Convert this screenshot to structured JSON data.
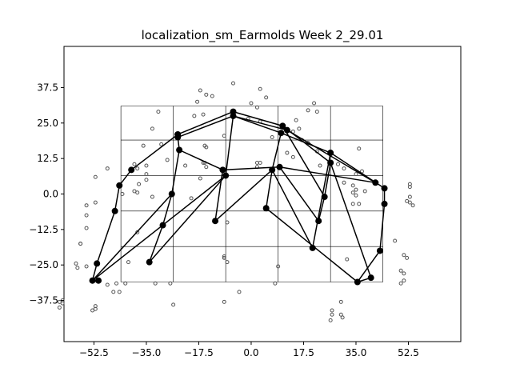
{
  "chart_data": {
    "type": "scatter",
    "title": "localization_sm_Earmolds Week 2_29.01",
    "xlabel": "",
    "ylabel": "",
    "xlim": [
      -62.5,
      70
    ],
    "ylim": [
      -52,
      52
    ],
    "grid": false,
    "x_ticks": [
      -52.5,
      -35.0,
      -17.5,
      0.0,
      17.5,
      35.0,
      52.5
    ],
    "x_tick_labels": [
      "−52.5",
      "−35.0",
      "−17.5",
      "0.0",
      "17.5",
      "35.0",
      "52.5"
    ],
    "y_ticks": [
      37.5,
      25.0,
      12.5,
      0.0,
      -12.5,
      -25.0,
      -37.5
    ],
    "y_tick_labels": [
      "37.5",
      "25.0",
      "12.5",
      "0.0",
      "−12.5",
      "−25.0",
      "−37.5"
    ],
    "colors": {
      "marker": "#000000",
      "scatter_edge": "#555555",
      "rect": "#000000"
    },
    "reference_grid": {
      "x": [
        -43.5,
        -26,
        -8.5,
        9,
        26.5,
        44
      ],
      "y": [
        -31,
        -18.5,
        -6,
        6.5,
        19,
        31
      ]
    },
    "main_points": [
      {
        "id": "a1",
        "x": -6.0,
        "y": 29.0
      },
      {
        "id": "a2",
        "x": -6.0,
        "y": 27.5
      },
      {
        "id": "a3",
        "x": 10.5,
        "y": 24.0
      },
      {
        "id": "a4",
        "x": 12.0,
        "y": 22.5
      },
      {
        "id": "a5",
        "x": -24.5,
        "y": 21.0
      },
      {
        "id": "a6",
        "x": -24.5,
        "y": 20.0
      },
      {
        "id": "a7",
        "x": 26.5,
        "y": 14.5
      },
      {
        "id": "a8",
        "x": 26.5,
        "y": 11.0
      },
      {
        "id": "a9",
        "x": -40.0,
        "y": 8.5
      },
      {
        "id": "a10",
        "x": -44.0,
        "y": 3.0
      },
      {
        "id": "a11",
        "x": 41.5,
        "y": 4.0
      },
      {
        "id": "a12",
        "x": 44.5,
        "y": 2.0
      },
      {
        "id": "a13",
        "x": 44.5,
        "y": -3.5
      },
      {
        "id": "a14",
        "x": -45.5,
        "y": -6.0
      },
      {
        "id": "a15",
        "x": -26.5,
        "y": 0.0
      },
      {
        "id": "a16",
        "x": -8.5,
        "y": 6.5
      },
      {
        "id": "a17",
        "x": -9.5,
        "y": 8.5
      },
      {
        "id": "a18",
        "x": 7.0,
        "y": 8.5
      },
      {
        "id": "a19",
        "x": 9.5,
        "y": 9.5
      },
      {
        "id": "a20",
        "x": 10.0,
        "y": 21.5
      },
      {
        "id": "a21",
        "x": -24.0,
        "y": 15.5
      },
      {
        "id": "a22",
        "x": 24.5,
        "y": -1.0
      },
      {
        "id": "a23",
        "x": -29.5,
        "y": -11.0
      },
      {
        "id": "a24",
        "x": -12.0,
        "y": -9.5
      },
      {
        "id": "a25",
        "x": 5.0,
        "y": -5.0
      },
      {
        "id": "a26",
        "x": 22.5,
        "y": -9.5
      },
      {
        "id": "a27",
        "x": -51.5,
        "y": -24.5
      },
      {
        "id": "a28",
        "x": -34.0,
        "y": -24.0
      },
      {
        "id": "a29",
        "x": 20.5,
        "y": -19.0
      },
      {
        "id": "a30",
        "x": 43.0,
        "y": -20.0
      },
      {
        "id": "a31",
        "x": -53.0,
        "y": -30.5
      },
      {
        "id": "a32",
        "x": -51.0,
        "y": -30.5
      },
      {
        "id": "a33",
        "x": 35.5,
        "y": -31.0
      },
      {
        "id": "a34",
        "x": 40.0,
        "y": -29.5
      }
    ],
    "segments": [
      [
        "a1",
        "a5"
      ],
      [
        "a1",
        "a3"
      ],
      [
        "a2",
        "a20"
      ],
      [
        "a2",
        "a6"
      ],
      [
        "a2",
        "a4"
      ],
      [
        "a5",
        "a9"
      ],
      [
        "a6",
        "a21"
      ],
      [
        "a9",
        "a10"
      ],
      [
        "a10",
        "a14"
      ],
      [
        "a14",
        "a27"
      ],
      [
        "a27",
        "a31"
      ],
      [
        "a31",
        "a32"
      ],
      [
        "a31",
        "a15"
      ],
      [
        "a31",
        "a16"
      ],
      [
        "a15",
        "a21"
      ],
      [
        "a15",
        "a23"
      ],
      [
        "a23",
        "a28"
      ],
      [
        "a28",
        "a16"
      ],
      [
        "a16",
        "a2"
      ],
      [
        "a17",
        "a19"
      ],
      [
        "a17",
        "a21"
      ],
      [
        "a17",
        "a24"
      ],
      [
        "a24",
        "a18"
      ],
      [
        "a18",
        "a20"
      ],
      [
        "a18",
        "a29"
      ],
      [
        "a18",
        "a25"
      ],
      [
        "a25",
        "a33"
      ],
      [
        "a33",
        "a34"
      ],
      [
        "a34",
        "a8"
      ],
      [
        "a33",
        "a30"
      ],
      [
        "a30",
        "a13"
      ],
      [
        "a13",
        "a12"
      ],
      [
        "a12",
        "a7"
      ],
      [
        "a7",
        "a20"
      ],
      [
        "a11",
        "a4"
      ],
      [
        "a11",
        "a19"
      ],
      [
        "a19",
        "a26"
      ],
      [
        "a26",
        "a22"
      ],
      [
        "a22",
        "a8"
      ],
      [
        "a8",
        "a3"
      ],
      [
        "a7",
        "a29"
      ],
      [
        "a4",
        "a3"
      ],
      [
        "a22",
        "a3"
      ]
    ],
    "scatter_points": [
      [
        -6,
        39
      ],
      [
        -17,
        36.5
      ],
      [
        -15,
        35
      ],
      [
        -13,
        34.5
      ],
      [
        -18,
        32.5
      ],
      [
        3,
        37
      ],
      [
        5,
        34
      ],
      [
        0,
        32
      ],
      [
        21,
        32
      ],
      [
        2,
        30.5
      ],
      [
        -16,
        28
      ],
      [
        -31,
        29
      ],
      [
        -19,
        27.5
      ],
      [
        -33,
        23
      ],
      [
        19,
        29.5
      ],
      [
        22,
        29
      ],
      [
        15,
        26
      ],
      [
        -1,
        26.5
      ],
      [
        3,
        25.5
      ],
      [
        16,
        23
      ],
      [
        -9,
        20.5
      ],
      [
        14,
        22
      ],
      [
        7,
        20
      ],
      [
        17,
        19
      ],
      [
        19,
        18
      ],
      [
        -25,
        21
      ],
      [
        -30,
        17.5
      ],
      [
        -36,
        17
      ],
      [
        -15.5,
        17
      ],
      [
        -15,
        16.5
      ],
      [
        12,
        14.5
      ],
      [
        22,
        15
      ],
      [
        14,
        13
      ],
      [
        -28,
        12
      ],
      [
        -16,
        11
      ],
      [
        -15.5,
        11
      ],
      [
        -39,
        10.5
      ],
      [
        -38,
        9
      ],
      [
        -35,
        10
      ],
      [
        -22,
        10
      ],
      [
        -15,
        9.5
      ],
      [
        -35,
        7
      ],
      [
        2,
        11
      ],
      [
        3,
        11
      ],
      [
        2,
        9.5
      ],
      [
        36,
        16
      ],
      [
        23,
        10
      ],
      [
        29,
        10.5
      ],
      [
        31,
        9
      ],
      [
        35,
        7
      ],
      [
        37,
        8
      ],
      [
        -48,
        9
      ],
      [
        -52,
        6
      ],
      [
        -17,
        5.5
      ],
      [
        -35,
        5
      ],
      [
        -37.5,
        3.5
      ],
      [
        -39,
        1
      ],
      [
        -38,
        0.5
      ],
      [
        -33,
        -1
      ],
      [
        -43,
        0
      ],
      [
        -20,
        -1.5
      ],
      [
        31,
        4
      ],
      [
        34,
        3
      ],
      [
        35,
        1.5
      ],
      [
        38,
        1
      ],
      [
        34,
        0.5
      ],
      [
        35,
        -0.5
      ],
      [
        -52,
        -3
      ],
      [
        -55,
        -4
      ],
      [
        -55,
        -7.5
      ],
      [
        -55,
        -12
      ],
      [
        34,
        -3.5
      ],
      [
        36,
        -3.5
      ],
      [
        -38,
        -13.5
      ],
      [
        -8,
        -10
      ],
      [
        52,
        -2.5
      ],
      [
        53,
        -3
      ],
      [
        54,
        -4
      ],
      [
        53,
        -1
      ],
      [
        53,
        2.5
      ],
      [
        53,
        3.5
      ],
      [
        -57,
        -17.5
      ],
      [
        -57,
        -17.5
      ],
      [
        48,
        -16.5
      ],
      [
        -41,
        -24
      ],
      [
        -8,
        -24
      ],
      [
        -9,
        -22.5
      ],
      [
        -9,
        -22
      ],
      [
        9,
        -25.5
      ],
      [
        32,
        -23
      ],
      [
        51,
        -21.5
      ],
      [
        52,
        -22.5
      ],
      [
        -58.5,
        -24.5
      ],
      [
        -55,
        -25.5
      ],
      [
        -58,
        -26
      ],
      [
        50,
        -27
      ],
      [
        51,
        -28
      ],
      [
        51,
        -30.5
      ],
      [
        50,
        -31.5
      ],
      [
        -48,
        -32
      ],
      [
        -46,
        -34.5
      ],
      [
        -44,
        -34.5
      ],
      [
        -45,
        -31.5
      ],
      [
        -42,
        -31.5
      ],
      [
        -32,
        -31.5
      ],
      [
        -27,
        -31.5
      ],
      [
        -4,
        -34.5
      ],
      [
        8,
        -31.5
      ],
      [
        -26,
        -39
      ],
      [
        -9,
        -38
      ],
      [
        30,
        -38
      ],
      [
        -52,
        -39.5
      ],
      [
        -52,
        -40.5
      ],
      [
        -53,
        -41
      ],
      [
        -63,
        -37.5
      ],
      [
        -63,
        -38.5
      ],
      [
        -64,
        -38
      ],
      [
        -64,
        -40
      ],
      [
        27,
        -41
      ],
      [
        27,
        -42.5
      ],
      [
        30,
        -42.5
      ],
      [
        30.5,
        -43.5
      ],
      [
        26.5,
        -44.5
      ]
    ]
  }
}
